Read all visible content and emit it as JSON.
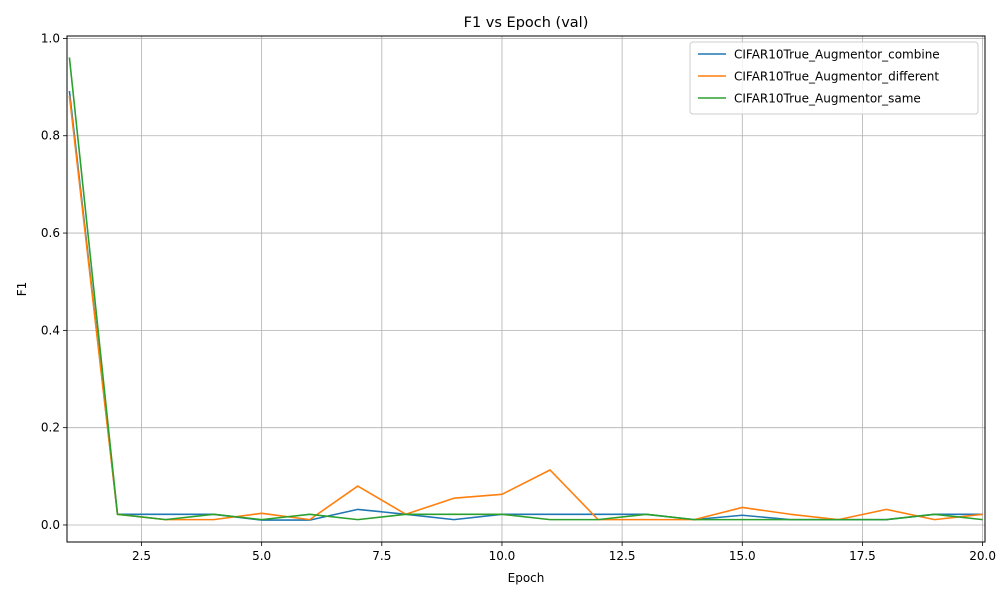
{
  "chart_data": {
    "type": "line",
    "title": "F1 vs Epoch (val)",
    "xlabel": "Epoch",
    "ylabel": "F1",
    "xlim": [
      0.95,
      20.05
    ],
    "ylim": [
      -0.035,
      1.005
    ],
    "xticks": [
      2.5,
      5.0,
      7.5,
      10.0,
      12.5,
      15.0,
      17.5,
      20.0
    ],
    "xtick_labels": [
      "2.5",
      "5.0",
      "7.5",
      "10.0",
      "12.5",
      "15.0",
      "17.5",
      "20.0"
    ],
    "yticks": [
      0.0,
      0.2,
      0.4,
      0.6,
      0.8,
      1.0
    ],
    "ytick_labels": [
      "0.0",
      "0.2",
      "0.4",
      "0.6",
      "0.8",
      "1.0"
    ],
    "grid": true,
    "legend_position": "top-right",
    "x": [
      1,
      2,
      3,
      4,
      5,
      6,
      7,
      8,
      9,
      10,
      11,
      12,
      13,
      14,
      15,
      16,
      17,
      18,
      19,
      20
    ],
    "series": [
      {
        "name": "CIFAR10True_Augmentor_combine",
        "color": "#1f77b4",
        "values": [
          0.892,
          0.022,
          0.022,
          0.022,
          0.01,
          0.01,
          0.032,
          0.022,
          0.011,
          0.022,
          0.022,
          0.022,
          0.022,
          0.011,
          0.02,
          0.011,
          0.011,
          0.011,
          0.022,
          0.022
        ]
      },
      {
        "name": "CIFAR10True_Augmentor_different",
        "color": "#ff7f0e",
        "values": [
          0.882,
          0.022,
          0.011,
          0.011,
          0.024,
          0.011,
          0.08,
          0.022,
          0.055,
          0.063,
          0.113,
          0.011,
          0.011,
          0.011,
          0.036,
          0.022,
          0.011,
          0.032,
          0.011,
          0.022
        ]
      },
      {
        "name": "CIFAR10True_Augmentor_same",
        "color": "#2ca02c",
        "values": [
          0.961,
          0.022,
          0.011,
          0.022,
          0.011,
          0.022,
          0.011,
          0.022,
          0.022,
          0.022,
          0.011,
          0.011,
          0.022,
          0.011,
          0.011,
          0.011,
          0.011,
          0.011,
          0.022,
          0.011
        ]
      }
    ]
  }
}
